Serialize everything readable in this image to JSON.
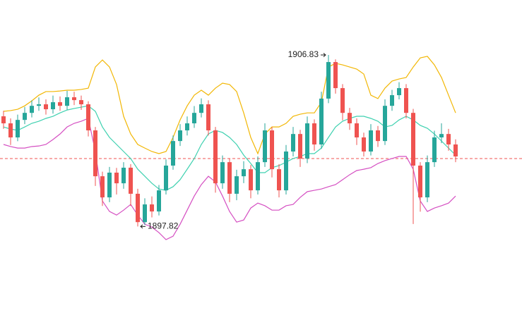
{
  "chart_data": {
    "type": "candlestick",
    "ylim": [
      1893.17,
      1909.72
    ],
    "up_color": "#26a69a",
    "down_color": "#ef5350",
    "open": [
      1903.61,
      1903.24,
      1902.5,
      1903.42,
      1903.79,
      1904.16,
      1904.24,
      1903.98,
      1904.35,
      1904.16,
      1904.61,
      1904.46,
      1904.24,
      1902.87,
      1900.46,
      1899.35,
      1900.65,
      1900.09,
      1900.91,
      1899.54,
      1898.05,
      1898.98,
      1898.61,
      1899.72,
      1901.02,
      1902.31,
      1902.87,
      1903.24,
      1903.79,
      1904.24,
      1902.87,
      1900.09,
      1901.2,
      1899.54,
      1900.46,
      1900.83,
      1899.72,
      1901.2,
      1902.87,
      1900.83,
      1899.72,
      1901.76,
      1902.68,
      1901.39,
      1903.24,
      1902.13,
      1904.54,
      1906.46,
      1905.09,
      1903.79,
      1903.24,
      1902.5,
      1901.76,
      1902.87,
      1902.31,
      1904.16,
      1904.72,
      1905.09,
      1903.79,
      1901.02,
      1899.35,
      1901.2,
      1902.5,
      1902.68,
      1902.13
    ],
    "high": [
      1903.9,
      1903.5,
      1903.7,
      1904.1,
      1904.45,
      1904.6,
      1904.5,
      1904.7,
      1904.65,
      1904.95,
      1904.9,
      1904.7,
      1904.4,
      1903.05,
      1900.7,
      1900.95,
      1900.9,
      1901.2,
      1901.1,
      1899.8,
      1899.3,
      1899.4,
      1900.0,
      1901.35,
      1902.6,
      1903.2,
      1903.6,
      1904.15,
      1904.55,
      1904.45,
      1903.05,
      1901.55,
      1901.4,
      1900.8,
      1901.25,
      1901.05,
      1901.5,
      1903.24,
      1903.05,
      1901.1,
      1902.1,
      1903.05,
      1902.9,
      1903.6,
      1903.45,
      1904.9,
      1906.83,
      1906.6,
      1905.3,
      1904.05,
      1903.5,
      1902.75,
      1903.2,
      1903.1,
      1904.5,
      1905.0,
      1905.4,
      1905.3,
      1904.0,
      1901.2,
      1901.55,
      1902.85,
      1903.24,
      1902.95,
      1902.4
    ],
    "low": [
      1902.95,
      1902.1,
      1902.3,
      1903.2,
      1903.55,
      1903.9,
      1903.7,
      1903.75,
      1903.9,
      1903.95,
      1904.2,
      1903.95,
      1902.55,
      1899.95,
      1898.9,
      1899.1,
      1899.5,
      1899.8,
      1898.9,
      1897.82,
      1897.9,
      1898.3,
      1898.4,
      1899.5,
      1900.8,
      1902.05,
      1902.6,
      1903.0,
      1903.55,
      1902.6,
      1899.6,
      1899.8,
      1899.1,
      1899.2,
      1900.1,
      1899.3,
      1899.5,
      1900.95,
      1900.4,
      1899.35,
      1899.5,
      1901.5,
      1900.95,
      1901.15,
      1901.8,
      1901.9,
      1904.3,
      1904.8,
      1903.4,
      1902.9,
      1902.1,
      1901.5,
      1901.55,
      1902.0,
      1902.1,
      1903.9,
      1904.5,
      1903.5,
      1897.95,
      1898.6,
      1899.1,
      1900.95,
      1902.2,
      1901.8,
      1901.2
    ],
    "close": [
      1903.24,
      1902.5,
      1903.42,
      1903.79,
      1904.16,
      1904.24,
      1903.98,
      1904.35,
      1904.16,
      1904.61,
      1904.46,
      1904.24,
      1902.87,
      1900.46,
      1899.35,
      1900.65,
      1900.09,
      1900.91,
      1899.54,
      1898.05,
      1898.98,
      1898.61,
      1899.72,
      1901.02,
      1902.31,
      1902.87,
      1903.24,
      1903.79,
      1904.24,
      1902.87,
      1900.09,
      1901.2,
      1899.54,
      1900.46,
      1900.83,
      1899.72,
      1901.2,
      1902.87,
      1900.83,
      1899.72,
      1901.76,
      1902.68,
      1901.39,
      1903.24,
      1902.13,
      1904.54,
      1906.46,
      1905.09,
      1903.79,
      1903.24,
      1902.5,
      1901.76,
      1902.87,
      1902.31,
      1904.16,
      1904.72,
      1905.09,
      1903.79,
      1901.02,
      1899.35,
      1901.2,
      1902.5,
      1902.68,
      1902.13,
      1901.5
    ],
    "bands": [
      {
        "color": "#f2b705",
        "values": [
          1903.87,
          1903.91,
          1903.98,
          1904.16,
          1904.42,
          1904.72,
          1904.91,
          1904.91,
          1904.94,
          1904.98,
          1904.98,
          1905.02,
          1905.09,
          1906.2,
          1906.57,
          1906.2,
          1905.28,
          1903.61,
          1902.68,
          1902.13,
          1901.94,
          1901.76,
          1901.65,
          1901.76,
          1902.5,
          1903.42,
          1904.16,
          1904.72,
          1904.98,
          1904.72,
          1905.09,
          1905.35,
          1905.28,
          1904.91,
          1903.79,
          1902.5,
          1901.65,
          1902.68,
          1903.05,
          1903.05,
          1903.24,
          1903.61,
          1903.72,
          1903.79,
          1903.79,
          1904.35,
          1906.2,
          1906.39,
          1906.31,
          1906.2,
          1906.09,
          1905.83,
          1904.72,
          1904.54,
          1905.09,
          1905.46,
          1905.57,
          1905.65,
          1906.2,
          1906.68,
          1906.76,
          1906.31,
          1905.65,
          1904.72,
          1903.79
        ]
      },
      {
        "color": "#3fd1b0",
        "values": [
          1903.05,
          1902.94,
          1902.87,
          1903.05,
          1903.24,
          1903.35,
          1903.5,
          1903.61,
          1903.79,
          1903.94,
          1904.02,
          1904.09,
          1904.16,
          1903.87,
          1903.05,
          1902.5,
          1902.13,
          1901.76,
          1901.39,
          1900.83,
          1900.46,
          1900.09,
          1899.79,
          1899.72,
          1899.91,
          1900.28,
          1900.83,
          1901.39,
          1902.13,
          1902.68,
          1902.87,
          1902.76,
          1902.5,
          1902.13,
          1901.57,
          1901.13,
          1900.65,
          1900.65,
          1900.91,
          1901.02,
          1901.2,
          1901.39,
          1901.5,
          1901.65,
          1901.65,
          1901.94,
          1902.5,
          1903.05,
          1903.35,
          1903.5,
          1903.61,
          1903.61,
          1903.5,
          1903.35,
          1903.05,
          1903.13,
          1903.42,
          1903.61,
          1903.42,
          1903.13,
          1902.98,
          1902.68,
          1902.31,
          1901.94,
          1901.57
        ]
      },
      {
        "color": "#d54fc2",
        "values": [
          1902.13,
          1902.02,
          1901.94,
          1901.94,
          1902.02,
          1902.05,
          1902.13,
          1902.39,
          1902.68,
          1903.05,
          1903.24,
          1903.35,
          1903.5,
          1901.76,
          1899.16,
          1898.61,
          1898.42,
          1898.68,
          1898.98,
          1898.42,
          1897.94,
          1897.79,
          1897.5,
          1897.13,
          1897.31,
          1897.94,
          1898.68,
          1899.42,
          1900.02,
          1900.46,
          1900.16,
          1899.42,
          1898.61,
          1898.05,
          1898.16,
          1898.79,
          1899.05,
          1898.91,
          1898.68,
          1898.68,
          1898.91,
          1898.98,
          1899.35,
          1899.65,
          1899.72,
          1899.79,
          1899.91,
          1900.02,
          1900.28,
          1900.54,
          1900.76,
          1900.83,
          1900.91,
          1901.13,
          1901.28,
          1901.39,
          1901.5,
          1901.5,
          1900.83,
          1899.16,
          1898.61,
          1898.79,
          1898.91,
          1899.05,
          1899.42
        ]
      }
    ],
    "reference_line": {
      "value": 1901.39,
      "color": "#ef5350"
    },
    "max_label": "1906.83",
    "min_label": "1897.82"
  }
}
